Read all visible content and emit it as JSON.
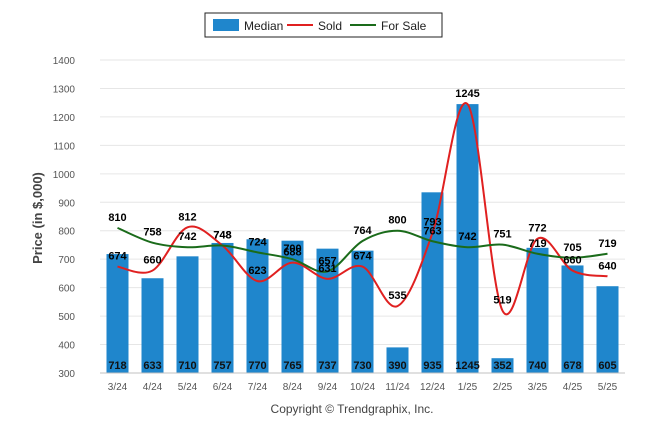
{
  "chart_data": {
    "type": "bar",
    "categories": [
      "3/24",
      "4/24",
      "5/24",
      "6/24",
      "7/24",
      "8/24",
      "9/24",
      "10/24",
      "11/24",
      "12/24",
      "1/25",
      "2/25",
      "3/25",
      "4/25",
      "5/25"
    ],
    "series": [
      {
        "name": "Median",
        "type": "bar",
        "color": "#1f86cc",
        "values": [
          718,
          633,
          710,
          757,
          770,
          765,
          737,
          730,
          390,
          935,
          1245,
          352,
          740,
          678,
          605
        ]
      },
      {
        "name": "Sold",
        "type": "line",
        "color": "#e02020",
        "values": [
          674,
          660,
          812,
          748,
          623,
          688,
          631,
          674,
          535,
          793,
          1245,
          519,
          772,
          660,
          640
        ]
      },
      {
        "name": "For Sale",
        "type": "line",
        "color": "#1a6b1a",
        "values": [
          810,
          758,
          742,
          748,
          724,
          700,
          657,
          764,
          800,
          763,
          742,
          751,
          719,
          705,
          719
        ]
      }
    ],
    "ylabel": "Price (in $,000)",
    "xlabel": "",
    "ylim": [
      300,
      1400
    ],
    "yticks": [
      300,
      400,
      500,
      600,
      700,
      800,
      900,
      1000,
      1100,
      1200,
      1300,
      1400
    ],
    "grid": true,
    "legend_position": "top-center",
    "footer": "Copyright © Trendgraphix, Inc."
  }
}
